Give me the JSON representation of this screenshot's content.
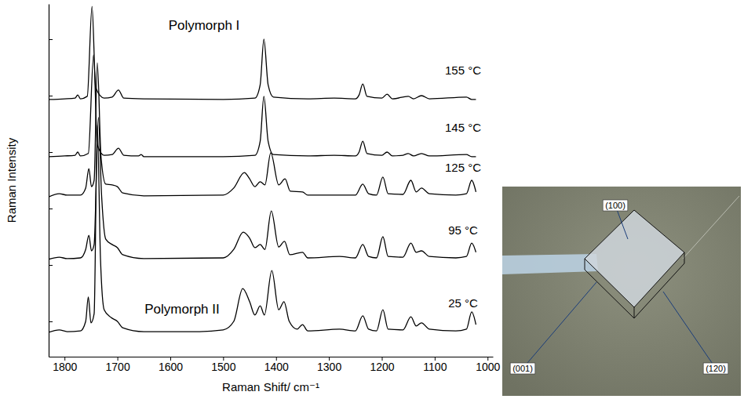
{
  "chart_data": {
    "type": "line",
    "x_label": "Raman Shift/ cm⁻¹",
    "y_label": "Raman Intensity",
    "annotations": [
      "Polymorph I",
      "Polymorph II"
    ],
    "xlim": [
      1830,
      990
    ],
    "xticks": [
      1800,
      1700,
      1600,
      1500,
      1400,
      1300,
      1200,
      1100,
      1000
    ],
    "ylim": [
      0,
      10
    ],
    "yticks": [
      1,
      2.6,
      4.2,
      5.8,
      7.4,
      9
    ],
    "tick_labels": "x",
    "grid": false,
    "series": [
      {
        "name": "155 °C",
        "color": "#000000",
        "x": [
          1830,
          1800,
          1780,
          1775,
          1770,
          1757,
          1748,
          1741,
          1725,
          1710,
          1698,
          1688,
          1650,
          1500,
          1440,
          1430,
          1423,
          1415,
          1405,
          1340,
          1290,
          1250,
          1243,
          1236,
          1228,
          1200,
          1190,
          1180,
          1150,
          1140,
          1125,
          1110,
          1040,
          1030,
          1022
        ],
        "values": [
          7.29,
          7.31,
          7.33,
          7.42,
          7.31,
          7.38,
          9.93,
          7.62,
          7.33,
          7.36,
          7.56,
          7.33,
          7.31,
          7.29,
          7.33,
          7.71,
          9.0,
          7.71,
          7.36,
          7.31,
          7.33,
          7.31,
          7.42,
          7.73,
          7.38,
          7.33,
          7.44,
          7.31,
          7.38,
          7.31,
          7.4,
          7.31,
          7.36,
          7.29,
          7.29
        ]
      },
      {
        "name": "145 °C",
        "color": "#000000",
        "x": [
          1830,
          1800,
          1780,
          1775,
          1770,
          1755,
          1745,
          1738,
          1725,
          1710,
          1698,
          1688,
          1660,
          1655,
          1650,
          1500,
          1440,
          1430,
          1423,
          1415,
          1405,
          1340,
          1290,
          1250,
          1243,
          1236,
          1228,
          1200,
          1190,
          1180,
          1160,
          1150,
          1140,
          1125,
          1110,
          1040,
          1030,
          1022
        ],
        "values": [
          5.67,
          5.69,
          5.71,
          5.8,
          5.69,
          5.76,
          8.56,
          6.0,
          5.71,
          5.73,
          5.91,
          5.71,
          5.69,
          5.73,
          5.67,
          5.67,
          5.71,
          6.11,
          7.38,
          6.11,
          5.73,
          5.69,
          5.71,
          5.69,
          5.8,
          6.11,
          5.76,
          5.71,
          5.8,
          5.69,
          5.71,
          5.76,
          5.69,
          5.76,
          5.69,
          5.73,
          5.67,
          5.67
        ]
      },
      {
        "name": "125 °C",
        "color": "#000000",
        "x": [
          1830,
          1810,
          1795,
          1770,
          1760,
          1754,
          1749,
          1744,
          1738,
          1731,
          1722,
          1710,
          1700,
          1690,
          1650,
          1500,
          1480,
          1460,
          1450,
          1440,
          1430,
          1421,
          1410,
          1395,
          1383,
          1373,
          1350,
          1340,
          1250,
          1236,
          1225,
          1210,
          1198,
          1188,
          1160,
          1145,
          1135,
          1125,
          1110,
          1060,
          1040,
          1030,
          1022
        ],
        "values": [
          4.53,
          4.62,
          4.58,
          4.58,
          4.78,
          5.33,
          4.82,
          5.0,
          8.33,
          5.67,
          4.89,
          4.87,
          4.82,
          4.64,
          4.56,
          4.58,
          4.78,
          5.22,
          5.04,
          4.82,
          4.96,
          4.87,
          5.78,
          4.87,
          5.04,
          4.69,
          4.67,
          4.58,
          4.58,
          4.89,
          4.62,
          4.58,
          5.09,
          4.62,
          4.6,
          5.0,
          4.67,
          4.78,
          4.62,
          4.58,
          4.62,
          5.0,
          4.67
        ]
      },
      {
        "name": "95 °C",
        "color": "#000000",
        "x": [
          1830,
          1810,
          1795,
          1770,
          1760,
          1754,
          1749,
          1744,
          1736,
          1730,
          1722,
          1710,
          1700,
          1690,
          1650,
          1500,
          1480,
          1462,
          1450,
          1440,
          1430,
          1421,
          1409,
          1395,
          1384,
          1374,
          1350,
          1340,
          1280,
          1250,
          1236,
          1225,
          1210,
          1198,
          1188,
          1160,
          1145,
          1135,
          1125,
          1110,
          1060,
          1040,
          1030,
          1022
        ],
        "values": [
          2.76,
          2.82,
          2.78,
          2.8,
          3.04,
          3.44,
          3.0,
          3.18,
          6.78,
          4.6,
          3.33,
          3.18,
          3.09,
          2.89,
          2.78,
          2.8,
          3.04,
          3.53,
          3.36,
          3.09,
          3.18,
          3.04,
          4.13,
          3.11,
          3.27,
          2.89,
          2.96,
          2.8,
          2.84,
          2.8,
          3.18,
          2.84,
          2.8,
          3.4,
          2.84,
          2.82,
          3.22,
          2.96,
          3.0,
          2.84,
          2.8,
          2.84,
          3.22,
          2.96
        ]
      },
      {
        "name": "25 °C",
        "color": "#000000",
        "x": [
          1830,
          1810,
          1795,
          1770,
          1760,
          1755,
          1750,
          1744,
          1738,
          1732,
          1725,
          1712,
          1700,
          1690,
          1650,
          1550,
          1500,
          1480,
          1463,
          1450,
          1440,
          1430,
          1422,
          1408,
          1395,
          1385,
          1375,
          1360,
          1350,
          1340,
          1280,
          1250,
          1236,
          1225,
          1210,
          1198,
          1188,
          1160,
          1145,
          1135,
          1125,
          1110,
          1060,
          1040,
          1030,
          1022
        ],
        "values": [
          0.69,
          0.76,
          0.71,
          0.73,
          1.0,
          1.69,
          0.96,
          1.22,
          6.56,
          2.78,
          1.33,
          1.11,
          1.0,
          0.82,
          0.71,
          0.71,
          0.76,
          1.0,
          1.93,
          1.56,
          1.18,
          1.44,
          1.18,
          2.44,
          1.33,
          1.56,
          1.0,
          0.78,
          0.91,
          0.73,
          0.78,
          0.73,
          1.16,
          0.78,
          0.73,
          1.33,
          0.78,
          0.76,
          1.13,
          0.87,
          0.96,
          0.78,
          0.73,
          0.78,
          1.27,
          0.91
        ]
      }
    ]
  },
  "photo": {
    "labels": [
      "(100)",
      "(001)",
      "(120)"
    ]
  }
}
